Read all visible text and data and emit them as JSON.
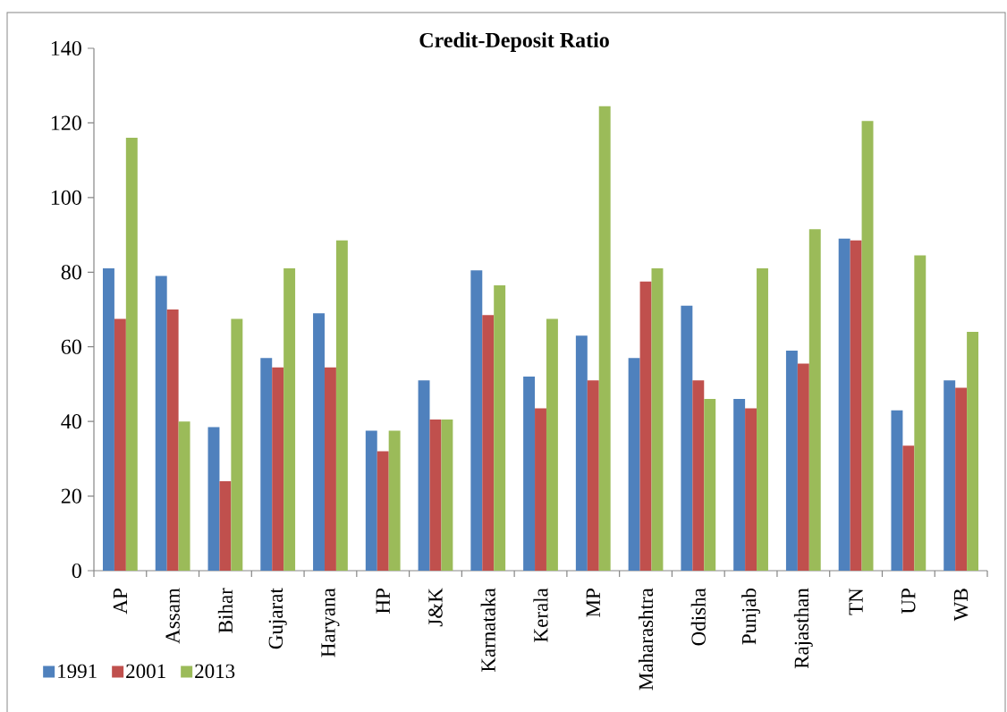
{
  "chart_data": {
    "type": "bar",
    "title": "Credit-Deposit Ratio",
    "categories": [
      "AP",
      "Assam",
      "Bihar",
      "Gujarat",
      "Haryana",
      "HP",
      "J&K",
      "Karnataka",
      "Kerala",
      "MP",
      "Maharashtra",
      "Odisha",
      "Punjab",
      "Rajasthan",
      "TN",
      "UP",
      "WB"
    ],
    "series": [
      {
        "name": "1991",
        "color": "#4f81bd",
        "values": [
          81,
          79,
          38.5,
          57,
          69,
          37.5,
          51,
          80.5,
          52,
          63,
          57,
          71,
          46,
          59,
          89,
          43,
          51
        ]
      },
      {
        "name": "2001",
        "color": "#c0504d",
        "values": [
          67.5,
          70,
          24,
          54.5,
          54.5,
          32,
          40.5,
          68.5,
          43.5,
          51,
          77.5,
          51,
          43.5,
          55.5,
          88.5,
          33.5,
          49
        ]
      },
      {
        "name": "2013",
        "color": "#9bbb59",
        "values": [
          116,
          40,
          67.5,
          81,
          88.5,
          37.5,
          40.5,
          76.5,
          67.5,
          124.5,
          81,
          46,
          81,
          91.5,
          120.5,
          84.5,
          64
        ]
      }
    ],
    "ylim": [
      0,
      140
    ],
    "yticks": [
      0,
      20,
      40,
      60,
      80,
      100,
      120,
      140
    ],
    "legend": "bottom left"
  }
}
